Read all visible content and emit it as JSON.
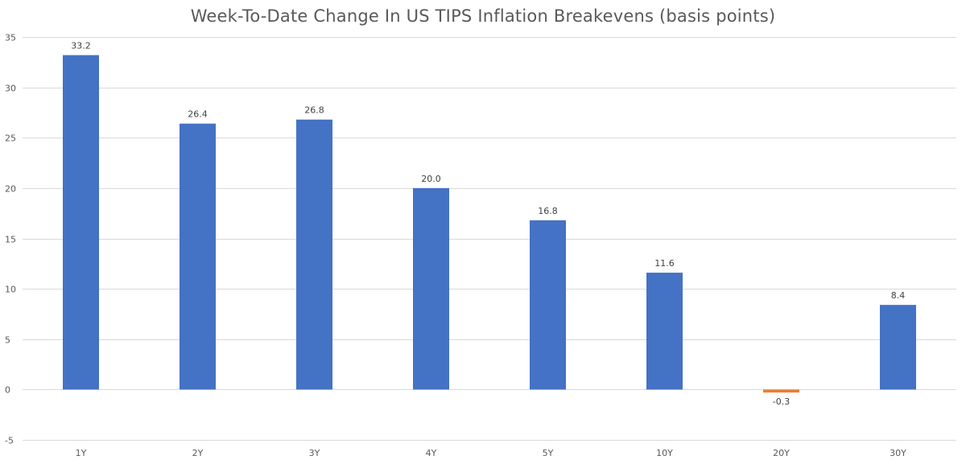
{
  "chart_data": {
    "type": "bar",
    "title": "Week-To-Date Change In US TIPS Inflation Breakevens (basis points)",
    "xlabel": "",
    "ylabel": "",
    "categories": [
      "1Y",
      "2Y",
      "3Y",
      "4Y",
      "5Y",
      "10Y",
      "20Y",
      "30Y"
    ],
    "values": [
      33.2,
      26.4,
      26.8,
      20.0,
      16.8,
      11.6,
      -0.3,
      8.4
    ],
    "data_labels": [
      "33.2",
      "26.4",
      "26.8",
      "20.0",
      "16.8",
      "11.6",
      "-0.3",
      "8.4"
    ],
    "ylim": [
      -5,
      35
    ],
    "yticks": [
      -5,
      0,
      5,
      10,
      15,
      20,
      25,
      30,
      35
    ],
    "grid": true,
    "legend": "none",
    "colors": {
      "positive": "#4472C4",
      "negative": "#ED7D31",
      "title": "#595959",
      "grid": "#D9D9D9"
    }
  }
}
